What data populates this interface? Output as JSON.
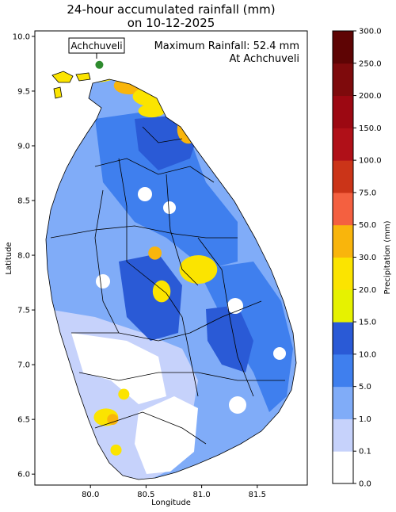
{
  "chart_data": {
    "type": "heatmap",
    "title_line1": "24-hour accumulated rainfall (mm)",
    "title_line2": "on 10-12-2025",
    "xlabel": "Longitude",
    "ylabel": "Latitude",
    "xlim": [
      79.5,
      81.95
    ],
    "ylim": [
      5.9,
      10.05
    ],
    "x_ticks": [
      80.0,
      80.5,
      81.0,
      81.5
    ],
    "x_tick_labels": [
      "80.0",
      "80.5",
      "81.0",
      "81.5"
    ],
    "y_ticks": [
      6.0,
      6.5,
      7.0,
      7.5,
      8.0,
      8.5,
      9.0,
      9.5,
      10.0
    ],
    "y_tick_labels": [
      "6.0",
      "6.5",
      "7.0",
      "7.5",
      "8.0",
      "8.5",
      "9.0",
      "9.5",
      "10.0"
    ],
    "annotation": {
      "max_line1": "Maximum Rainfall: 52.4 mm",
      "max_line2": "At Achchuveli",
      "station_label": "Achchuveli",
      "station_lon": 80.08,
      "station_lat": 9.74,
      "station_color": "#2e8b2e"
    },
    "colorbar": {
      "label": "Precipitation (mm)",
      "levels": [
        0.0,
        0.1,
        1.0,
        5.0,
        10.0,
        15.0,
        20.0,
        30.0,
        50.0,
        75.0,
        100.0,
        150.0,
        200.0,
        250.0,
        300.0
      ],
      "level_labels": [
        "0.0",
        "0.1",
        "1.0",
        "5.0",
        "10.0",
        "15.0",
        "20.0",
        "30.0",
        "50.0",
        "75.0",
        "100.0",
        "150.0",
        "200.0",
        "250.0",
        "300.0"
      ],
      "colors": [
        "#ffffff",
        "#c6d2fb",
        "#80acf8",
        "#3f7fee",
        "#2a5ad6",
        "#e6f200",
        "#fbe400",
        "#f9b50c",
        "#f46040",
        "#cb3418",
        "#b01018",
        "#9c0812",
        "#7e0a0c",
        "#5e0404"
      ]
    },
    "rain_zones": [
      {
        "lon": 80.05,
        "lat": 9.68,
        "rx": 0.22,
        "ry": 0.1,
        "color": "#fbe400"
      },
      {
        "lon": 80.35,
        "lat": 9.55,
        "rx": 0.14,
        "ry": 0.08,
        "color": "#f9b50c"
      },
      {
        "lon": 80.6,
        "lat": 9.45,
        "rx": 0.22,
        "ry": 0.1,
        "color": "#fbe400"
      },
      {
        "lon": 80.88,
        "lat": 9.15,
        "rx": 0.1,
        "ry": 0.13,
        "color": "#f9b50c"
      },
      {
        "lon": 80.55,
        "lat": 9.32,
        "rx": 0.12,
        "ry": 0.06,
        "color": "#fbe400"
      },
      {
        "lon": 80.97,
        "lat": 7.87,
        "rx": 0.17,
        "ry": 0.13,
        "color": "#fbe400"
      },
      {
        "lon": 80.58,
        "lat": 8.02,
        "rx": 0.06,
        "ry": 0.06,
        "color": "#f9b50c"
      },
      {
        "lon": 80.64,
        "lat": 7.67,
        "rx": 0.08,
        "ry": 0.1,
        "color": "#fbe400"
      },
      {
        "lon": 80.14,
        "lat": 6.52,
        "rx": 0.11,
        "ry": 0.08,
        "color": "#fbe400"
      },
      {
        "lon": 80.2,
        "lat": 6.5,
        "rx": 0.05,
        "ry": 0.05,
        "color": "#f9b50c"
      },
      {
        "lon": 80.3,
        "lat": 6.73,
        "rx": 0.05,
        "ry": 0.05,
        "color": "#fbe400"
      },
      {
        "lon": 80.23,
        "lat": 6.22,
        "rx": 0.05,
        "ry": 0.05,
        "color": "#fbe400"
      }
    ]
  }
}
